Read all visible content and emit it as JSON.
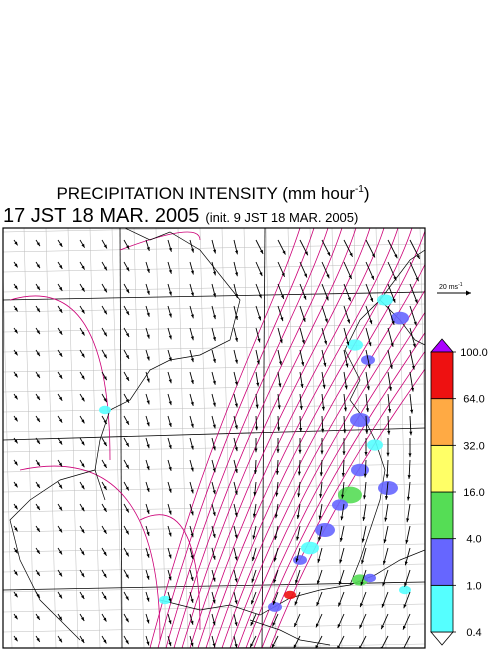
{
  "header": {
    "title": {
      "text": "PRECIPITATION INTENSITY (mm hour",
      "exponent": "-1",
      "close": ")"
    },
    "valid_time": "17 JST 18 MAR. 2005",
    "init_time": "(init. 9 JST 18 MAR. 2005)"
  },
  "wind_scale": {
    "text": "20 ms",
    "exponent": "-1"
  },
  "colorbar": {
    "levels": [
      {
        "value": 0.4,
        "label": "0.4"
      },
      {
        "value": 1,
        "label": "1.0"
      },
      {
        "value": 4,
        "label": "4.0"
      },
      {
        "value": 16,
        "label": "16.0"
      },
      {
        "value": 32,
        "label": "32.0"
      },
      {
        "value": 64,
        "label": "64.0"
      },
      {
        "value": 100,
        "label": "100.0"
      }
    ],
    "colors": [
      "#55ffff",
      "#6666ff",
      "#55dd55",
      "#ffff66",
      "#ffaa44",
      "#ee1111"
    ],
    "under_color": "#ffffff",
    "over_color": "#aa00ff"
  }
}
